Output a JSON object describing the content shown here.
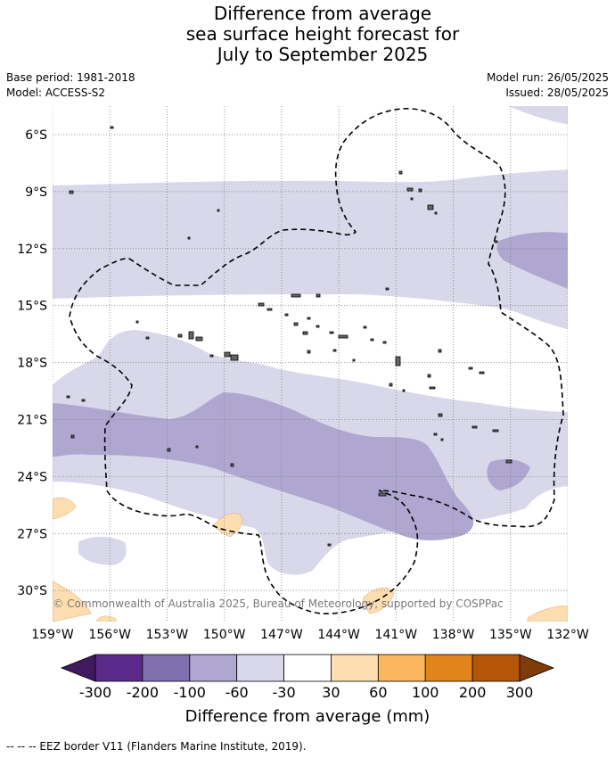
{
  "header": {
    "title_lines": [
      "Difference from average",
      "sea surface height forecast for",
      "July to September 2025"
    ],
    "base_period": "Base period: 1981-2018",
    "model": "Model: ACCESS-S2",
    "model_run": "Model run: 26/05/2025",
    "issued": "Issued: 28/05/2025"
  },
  "map": {
    "lat_labels": [
      "6°S",
      "9°S",
      "12°S",
      "15°S",
      "18°S",
      "21°S",
      "24°S",
      "27°S",
      "30°S"
    ],
    "lon_labels": [
      "159°W",
      "156°W",
      "153°W",
      "150°W",
      "147°W",
      "144°W",
      "141°W",
      "138°W",
      "135°W",
      "132°W"
    ],
    "copyright": "© Commonwealth of Australia 2025, Bureau of Meteorology, supported by COSPPac"
  },
  "colorbar": {
    "labels": [
      "-300",
      "-200",
      "-100",
      "-60",
      "-30",
      "30",
      "60",
      "100",
      "200",
      "300"
    ],
    "colors": [
      "#3f1a5e",
      "#5c2a8a",
      "#8070b0",
      "#afa7d0",
      "#d8d8ea",
      "#ffffff",
      "#fedeb0",
      "#fcb65d",
      "#e3841a",
      "#b35607",
      "#7f3b08"
    ],
    "title": "Difference from average (mm)"
  },
  "footer": {
    "legend": "--  --  -- EEZ border V11 (Flanders Marine Institute, 2019)."
  }
}
